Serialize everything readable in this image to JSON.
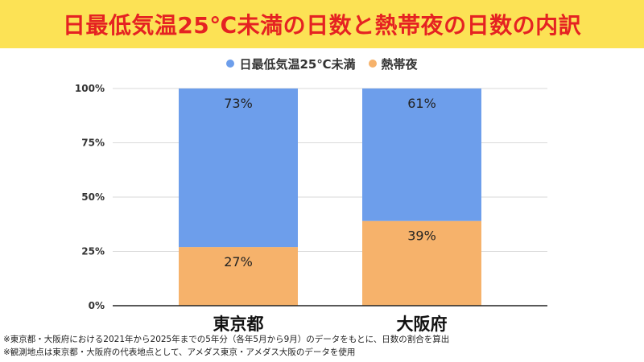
{
  "title": "日最低気温25℃未満の日数と熱帯夜の日数の内訳",
  "colors": {
    "banner_bg": "#fce255",
    "title_text": "#e52222",
    "series_below25": "#6d9eeb",
    "series_tropical": "#f6b26b",
    "axis": "#222222",
    "grid": "#d9d9d9"
  },
  "chart_data": {
    "type": "bar",
    "stacked": true,
    "categories": [
      "東京都",
      "大阪府"
    ],
    "series": [
      {
        "name": "熱帯夜",
        "values": [
          27,
          39
        ],
        "labels": [
          "27%",
          "39%"
        ],
        "color": "#f6b26b"
      },
      {
        "name": "日最低気温25℃未満",
        "values": [
          73,
          61
        ],
        "labels": [
          "73%",
          "61%"
        ],
        "color": "#6d9eeb"
      }
    ],
    "legend_order": [
      "日最低気温25℃未満",
      "熱帯夜"
    ],
    "yticks": [
      "0%",
      "25%",
      "50%",
      "75%",
      "100%"
    ],
    "ylim": [
      0,
      100
    ],
    "grid": true,
    "legend_position": "top-center"
  },
  "footnotes": [
    "※東京都・大阪府における2021年から2025年までの5年分（各年5月から9月）のデータをもとに、日数の割合を算出",
    "※観測地点は東京都・大阪府の代表地点として、アメダス東京・アメダス大阪のデータを使用"
  ]
}
